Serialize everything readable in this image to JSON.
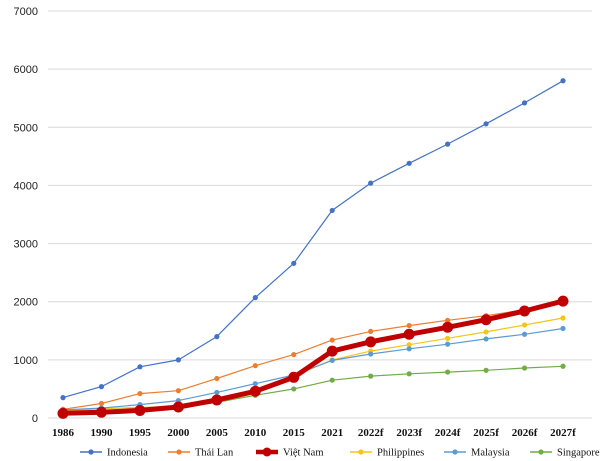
{
  "chart_data": {
    "type": "line",
    "categories": [
      "1986",
      "1990",
      "1995",
      "2000",
      "2005",
      "2010",
      "2015",
      "2021",
      "2022f",
      "2023f",
      "2024f",
      "2025f",
      "2026f",
      "2027f"
    ],
    "ylim": [
      0,
      7000
    ],
    "yticks": [
      0,
      1000,
      2000,
      3000,
      4000,
      5000,
      6000,
      7000
    ],
    "grid": true,
    "legend_position": "bottom",
    "series": [
      {
        "name": "Indonesia",
        "color": "#4472C4",
        "values": [
          350,
          540,
          880,
          1000,
          1400,
          2070,
          2660,
          3570,
          4040,
          4380,
          4710,
          5060,
          5420,
          5800
        ]
      },
      {
        "name": "Thái Lan",
        "color": "#ED7D31",
        "values": [
          150,
          250,
          420,
          470,
          680,
          900,
          1090,
          1340,
          1490,
          1590,
          1680,
          1760,
          1860,
          1980
        ]
      },
      {
        "name": "Việt Nam",
        "color": "#C00000",
        "values": [
          80,
          100,
          130,
          190,
          310,
          460,
          700,
          1150,
          1310,
          1440,
          1560,
          1690,
          1840,
          2010
        ]
      },
      {
        "name": "Philippines",
        "color": "#F5C518",
        "values": [
          120,
          160,
          180,
          200,
          270,
          430,
          720,
          1000,
          1150,
          1260,
          1370,
          1480,
          1600,
          1720
        ]
      },
      {
        "name": "Malaysia",
        "color": "#5B9BD5",
        "values": [
          140,
          170,
          230,
          300,
          440,
          590,
          740,
          990,
          1100,
          1190,
          1270,
          1360,
          1440,
          1540
        ]
      },
      {
        "name": "Singapore",
        "color": "#70AD47",
        "values": [
          90,
          110,
          150,
          170,
          270,
          390,
          500,
          650,
          720,
          760,
          790,
          820,
          860,
          890
        ]
      }
    ]
  }
}
